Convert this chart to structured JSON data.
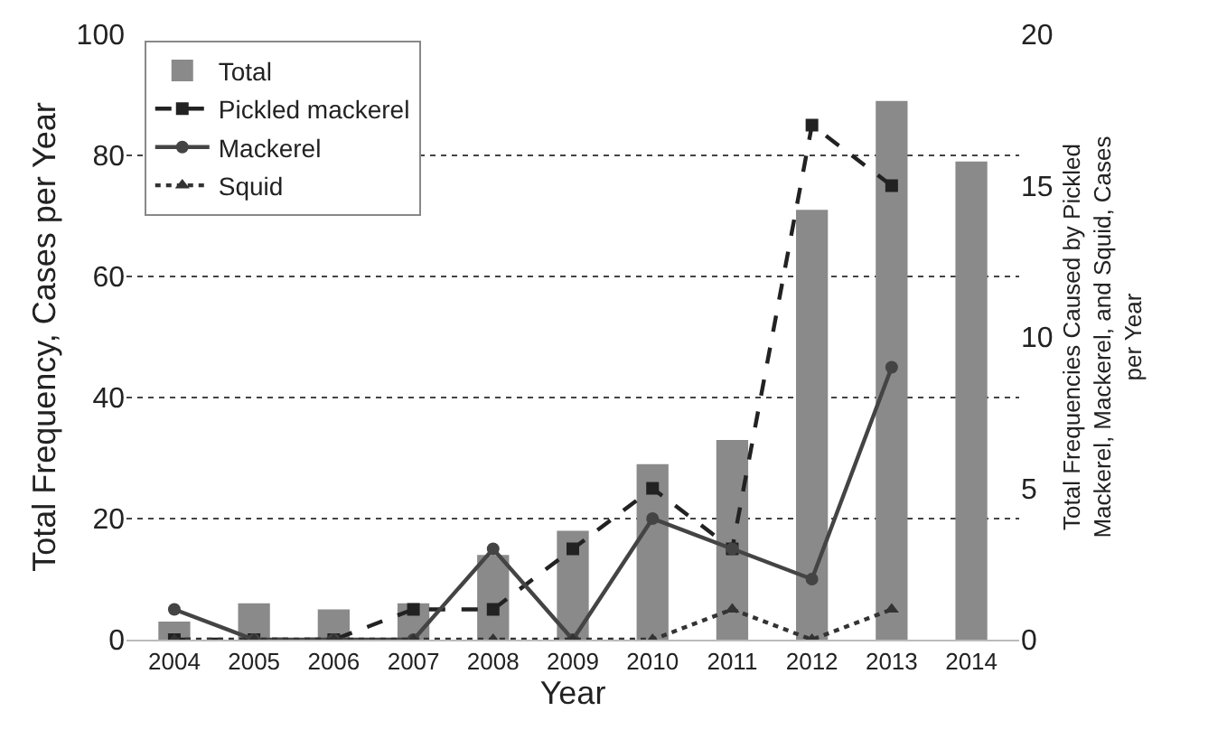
{
  "chart_data": {
    "type": "bar",
    "xlabel": "Year",
    "ylabel": "Total Frequency, Cases per Year",
    "y2label": "Total Frequencies Caused by Pickled Mackerel, Mackerel, and Squid, Cases per Year",
    "categories": [
      "2004",
      "2005",
      "2006",
      "2007",
      "2008",
      "2009",
      "2010",
      "2011",
      "2012",
      "2013",
      "2014"
    ],
    "series": [
      {
        "name": "Total",
        "color": "#8a8a8a",
        "values": [
          3,
          6,
          5,
          6,
          14,
          18,
          29,
          33,
          71,
          89,
          79
        ]
      },
      {
        "name": "Pickled mackerel",
        "type": "line",
        "axis": "y2",
        "color": "#222222",
        "line_style": "dashed",
        "marker": "square",
        "values": [
          0,
          0,
          0,
          1,
          1,
          3,
          5,
          3,
          17,
          15,
          null
        ]
      },
      {
        "name": "Mackerel",
        "type": "line",
        "axis": "y2",
        "color": "#444444",
        "line_style": "solid",
        "marker": "circle",
        "values": [
          1,
          0,
          0,
          0,
          3,
          0,
          4,
          3,
          2,
          9,
          null
        ]
      },
      {
        "name": "Squid",
        "type": "line",
        "axis": "y2",
        "color": "#333333",
        "line_style": "dotted",
        "marker": "triangle",
        "values": [
          0,
          0,
          0,
          0,
          0,
          0,
          0,
          1,
          0,
          1,
          null
        ]
      }
    ],
    "ylim": [
      0,
      100
    ],
    "yticks": [
      0,
      20,
      40,
      60,
      80,
      100
    ],
    "y2lim": [
      0,
      20
    ],
    "y2ticks": [
      0,
      5,
      10,
      15,
      20
    ],
    "grid": "y",
    "legend": "top left"
  }
}
